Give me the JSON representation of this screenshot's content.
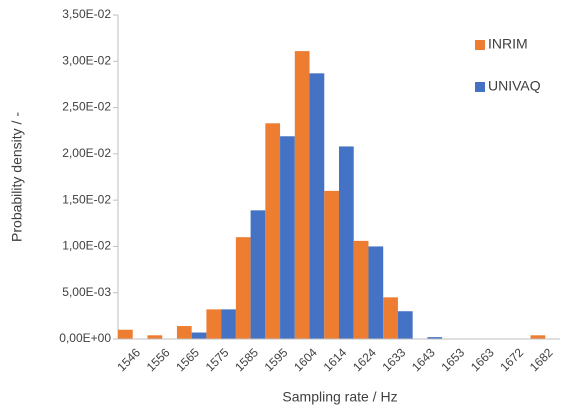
{
  "chart_data": {
    "type": "bar",
    "x_label": "Sampling rate / Hz",
    "y_label": "Probability density / -",
    "categories": [
      "1546",
      "1556",
      "1565",
      "1575",
      "1585",
      "1595",
      "1604",
      "1614",
      "1624",
      "1633",
      "1643",
      "1653",
      "1663",
      "1672",
      "1682"
    ],
    "series": [
      {
        "name": "INRIM",
        "color": "#ed7d31",
        "values": [
          0.001,
          0.0004,
          0.0014,
          0.0032,
          0.011,
          0.0233,
          0.0311,
          0.016,
          0.0106,
          0.0045,
          0,
          0,
          0,
          0,
          0.0004
        ]
      },
      {
        "name": "UNIVAQ",
        "color": "#4472c4",
        "values": [
          0,
          0,
          0.0007,
          0.0032,
          0.0139,
          0.0219,
          0.0287,
          0.0208,
          0.01,
          0.003,
          0.0002,
          0,
          0,
          0,
          0
        ]
      }
    ],
    "ylim": [
      0,
      0.035
    ],
    "yticks": [
      {
        "value": 0,
        "label": "0,00E+00"
      },
      {
        "value": 0.005,
        "label": "5,00E-03"
      },
      {
        "value": 0.01,
        "label": "1,00E-02"
      },
      {
        "value": 0.015,
        "label": "1,50E-02"
      },
      {
        "value": 0.02,
        "label": "2,00E-02"
      },
      {
        "value": 0.025,
        "label": "2,50E-02"
      },
      {
        "value": 0.03,
        "label": "3,00E-02"
      },
      {
        "value": 0.035,
        "label": "3,50E-02"
      }
    ],
    "legend": "top-right"
  }
}
